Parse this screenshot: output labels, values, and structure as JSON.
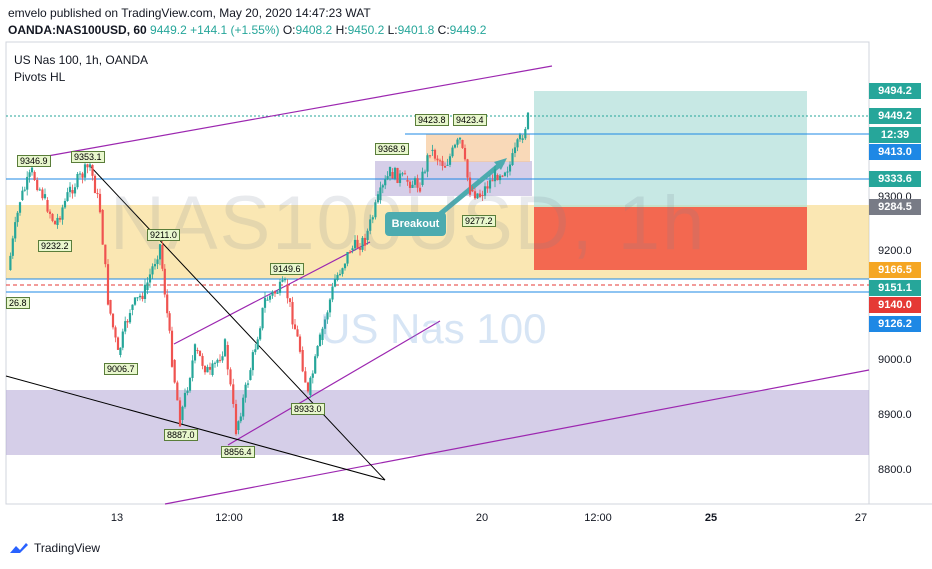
{
  "header": {
    "publisher_line": "emvelo published on TradingView.com, May 20, 2020 14:47:23 WAT",
    "symbol": "OANDA:NAS100USD, 60",
    "last": "9449.2",
    "change": "+144.1 (+1.55%)",
    "o_key": "O:",
    "o_val": "9408.2",
    "h_key": "H:",
    "h_val": "9450.2",
    "l_key": "L:",
    "l_val": "9401.8",
    "c_key": "C:",
    "c_val": "9449.2"
  },
  "chart_title": "US Nas 100, 1h, OANDA",
  "indicator_name": "Pivots HL",
  "watermark": "NAS100USD, 1h",
  "watermark_sub": "US Nas 100",
  "footer_brand": "TradingView",
  "annotation": "Breakout",
  "colors": {
    "up": "#26a69a",
    "down": "#ef5350",
    "channel": "#9c27b0",
    "supply_zone": "#f6d475",
    "demand_zone": "#b2a6d6",
    "target_box": "#a9dcd6",
    "stop_box": "#f25a45"
  },
  "price_tags": [
    {
      "label": "9494.2",
      "color": "#26a69a"
    },
    {
      "label": "9449.2",
      "color": "#26a69a"
    },
    {
      "label": "12:39",
      "color": "#26a69a"
    },
    {
      "label": "9413.0",
      "color": "#1e88e5"
    },
    {
      "label": "9333.6",
      "color": "#26a69a"
    },
    {
      "label": "9284.5",
      "color": "#787b86"
    },
    {
      "label": "9166.5",
      "color": "#f5a623"
    },
    {
      "label": "9151.1",
      "color": "#26a69a"
    },
    {
      "label": "9140.0",
      "color": "#e53935"
    },
    {
      "label": "9126.2",
      "color": "#1e88e5"
    }
  ],
  "chart_data": {
    "type": "candlestick",
    "title": "US Nas 100, 1h, OANDA",
    "y_ticks": [
      "9300.0",
      "9200.0",
      "9000.0",
      "8900.0",
      "8800.0"
    ],
    "x_ticks": [
      "13",
      "12:00",
      "18",
      "20",
      "12:00",
      "25",
      "27"
    ],
    "pivot_labels": [
      "9346.9",
      "9353.1",
      "9232.2",
      "9211.0",
      "9006.7",
      "26.8",
      "8887.0",
      "8856.4",
      "9149.6",
      "8933.0",
      "9368.9",
      "9423.8",
      "9423.4",
      "9277.2"
    ],
    "last_price": 9449.2,
    "target_price": 9494.2,
    "entry_price": 9284.5,
    "stop_price": 9166.5
  }
}
